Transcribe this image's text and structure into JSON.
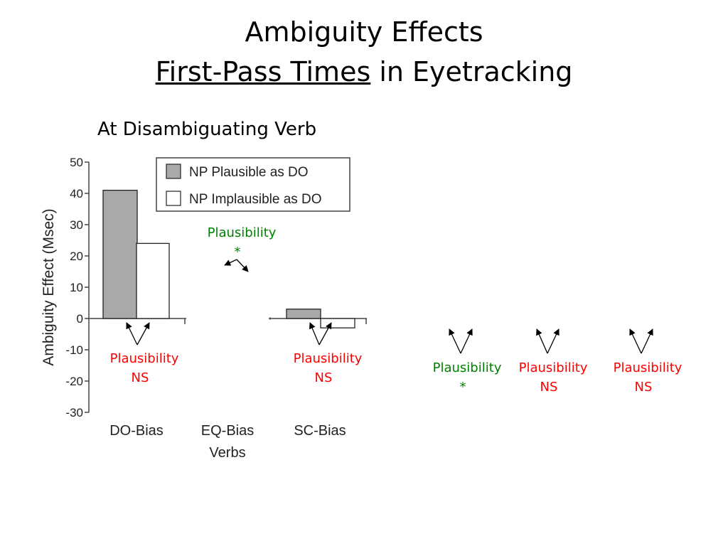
{
  "slide": {
    "title_line1": "Ambiguity Effects",
    "title_line2_underlined": "First-Pass Times",
    "title_line2_rest": " in Eyetracking",
    "subtitle": "At Disambiguating Verb"
  },
  "colors": {
    "plausible_fill": "#a9a9a9",
    "implausible_fill": "#ffffff",
    "significant": "#008000",
    "not_significant": "#ff0000"
  },
  "chart_data": {
    "type": "bar",
    "categories": [
      "DO-Bias",
      "EQ-Bias",
      "SC-Bias"
    ],
    "series": [
      {
        "name": "NP Plausible as DO",
        "values": [
          41,
          null,
          3
        ]
      },
      {
        "name": "NP Implausible as DO",
        "values": [
          24,
          null,
          -3
        ]
      }
    ],
    "xlabel": "Verbs",
    "ylabel": "Ambiguity Effect (Msec)",
    "ylim": [
      -30,
      50
    ],
    "yticks": [
      50,
      40,
      30,
      20,
      10,
      0,
      -10,
      -20,
      -30
    ],
    "legend_position": "top",
    "grid": false,
    "annotations": [
      {
        "line1": "Plausibility",
        "line2": "NS",
        "significant": false
      },
      {
        "line1": "Plausibility",
        "line2": "*",
        "significant": true
      },
      {
        "line1": "Plausibility",
        "line2": "NS",
        "significant": false
      },
      {
        "line1": "Plausibility",
        "line2": "*",
        "significant": true
      },
      {
        "line1": "Plausibility",
        "line2": "NS",
        "significant": false
      },
      {
        "line1": "Plausibility",
        "line2": "NS",
        "significant": false
      }
    ]
  }
}
